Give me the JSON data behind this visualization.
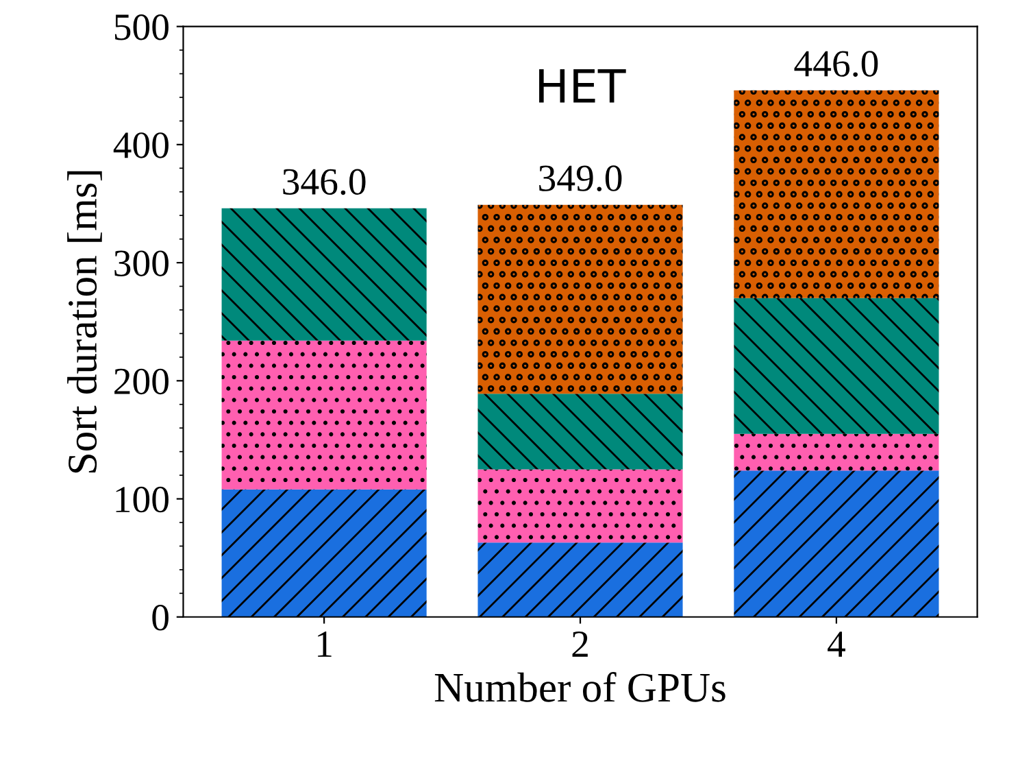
{
  "chart_data": {
    "type": "bar",
    "stacked": true,
    "xlabel": "Number of GPUs",
    "ylabel": "Sort duration [ms]",
    "categories": [
      "1",
      "2",
      "4"
    ],
    "series": [
      {
        "color": "#1a6fdf",
        "values": [
          108,
          63,
          124
        ]
      },
      {
        "color": "#ff5fb0",
        "values": [
          126,
          62,
          31
        ]
      },
      {
        "color": "#00897b",
        "values": [
          112,
          64,
          115
        ]
      },
      {
        "color": "#d95f02",
        "values": [
          null,
          160,
          176
        ]
      }
    ],
    "totals": [
      "346.0",
      "349.0",
      "446.0"
    ],
    "annotations": [
      "HET"
    ],
    "ylim": [
      0,
      500
    ],
    "yticks": [
      0,
      100,
      200,
      300,
      400,
      500
    ],
    "grid": false,
    "legend": false
  }
}
